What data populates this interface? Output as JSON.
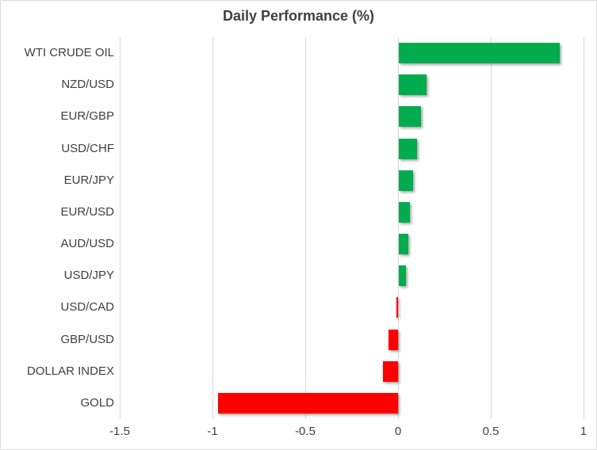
{
  "colors": {
    "positive": "#00AC4E",
    "negative": "#FF0000",
    "gridline": "#D9D9D9",
    "border": "#D9D9D9",
    "text": "#3F3F3F"
  },
  "chart_data": {
    "type": "bar",
    "orientation": "horizontal",
    "title": "Daily Performance (%)",
    "xlabel": "",
    "ylabel": "",
    "categories": [
      "WTI CRUDE OIL",
      "NZD/USD",
      "EUR/GBP",
      "USD/CHF",
      "EUR/JPY",
      "EUR/USD",
      "AUD/USD",
      "USD/JPY",
      "USD/CAD",
      "GBP/USD",
      "DOLLAR INDEX",
      "GOLD"
    ],
    "values": [
      0.87,
      0.15,
      0.12,
      0.1,
      0.08,
      0.06,
      0.055,
      0.04,
      -0.01,
      -0.05,
      -0.08,
      -0.97
    ],
    "xlim": [
      -1.5,
      1
    ],
    "xticks": [
      -1.5,
      -1,
      -0.5,
      0,
      0.5,
      1
    ],
    "xtick_labels": [
      "-1.5",
      "-1",
      "-0.5",
      "0",
      "0.5",
      "1"
    ],
    "grid": true,
    "legend": false,
    "positive_color_meaning": "gain",
    "negative_color_meaning": "loss"
  }
}
